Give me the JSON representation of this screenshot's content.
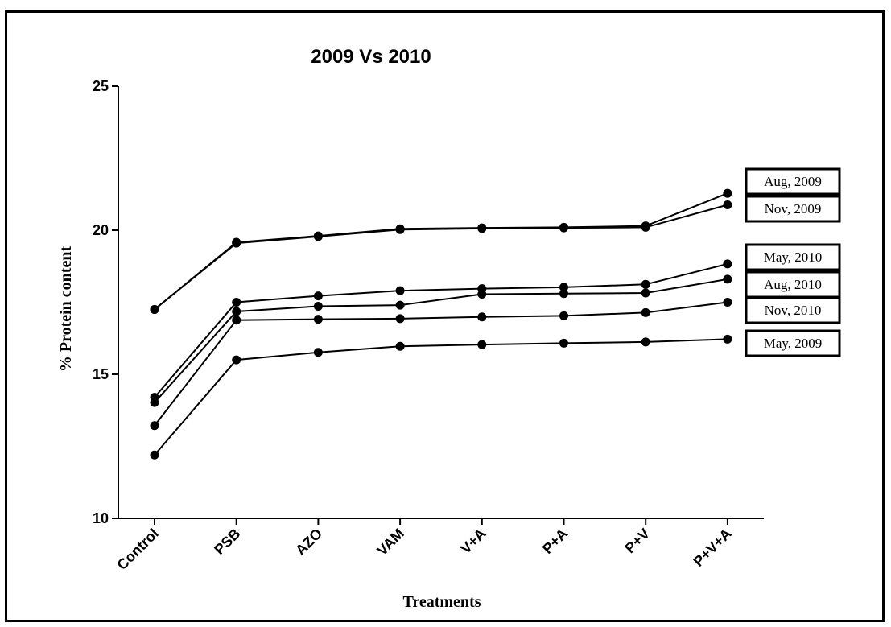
{
  "chart_data": {
    "type": "line",
    "title": "2009 Vs 2010",
    "xlabel": "Treatments",
    "ylabel": "% Protein content",
    "categories": [
      "Control",
      "PSB",
      "AZO",
      "VAM",
      "V+A",
      "P+A",
      "P+V",
      "P+V+A"
    ],
    "ylim": [
      10,
      25
    ],
    "yticks": [
      "10",
      "15",
      "20",
      "25"
    ],
    "grid": false,
    "legend_placement": "right, labels at line ends",
    "series": [
      {
        "name": "Aug, 2009",
        "values": [
          17.25,
          19.58,
          19.8,
          20.05,
          20.08,
          20.1,
          20.15,
          21.28
        ]
      },
      {
        "name": "Nov, 2009",
        "values": [
          17.25,
          19.55,
          19.78,
          20.02,
          20.06,
          20.08,
          20.1,
          20.88
        ]
      },
      {
        "name": "May, 2010",
        "values": [
          14.2,
          17.5,
          17.72,
          17.9,
          17.97,
          18.02,
          18.12,
          18.83
        ]
      },
      {
        "name": "Aug, 2010",
        "values": [
          14.02,
          17.18,
          17.36,
          17.4,
          17.78,
          17.8,
          17.82,
          18.3
        ]
      },
      {
        "name": "Nov, 2010",
        "values": [
          13.22,
          16.88,
          16.91,
          16.93,
          16.99,
          17.03,
          17.14,
          17.5
        ]
      },
      {
        "name": "May, 2009",
        "values": [
          12.2,
          15.5,
          15.76,
          15.97,
          16.03,
          16.08,
          16.12,
          16.22
        ]
      }
    ]
  }
}
